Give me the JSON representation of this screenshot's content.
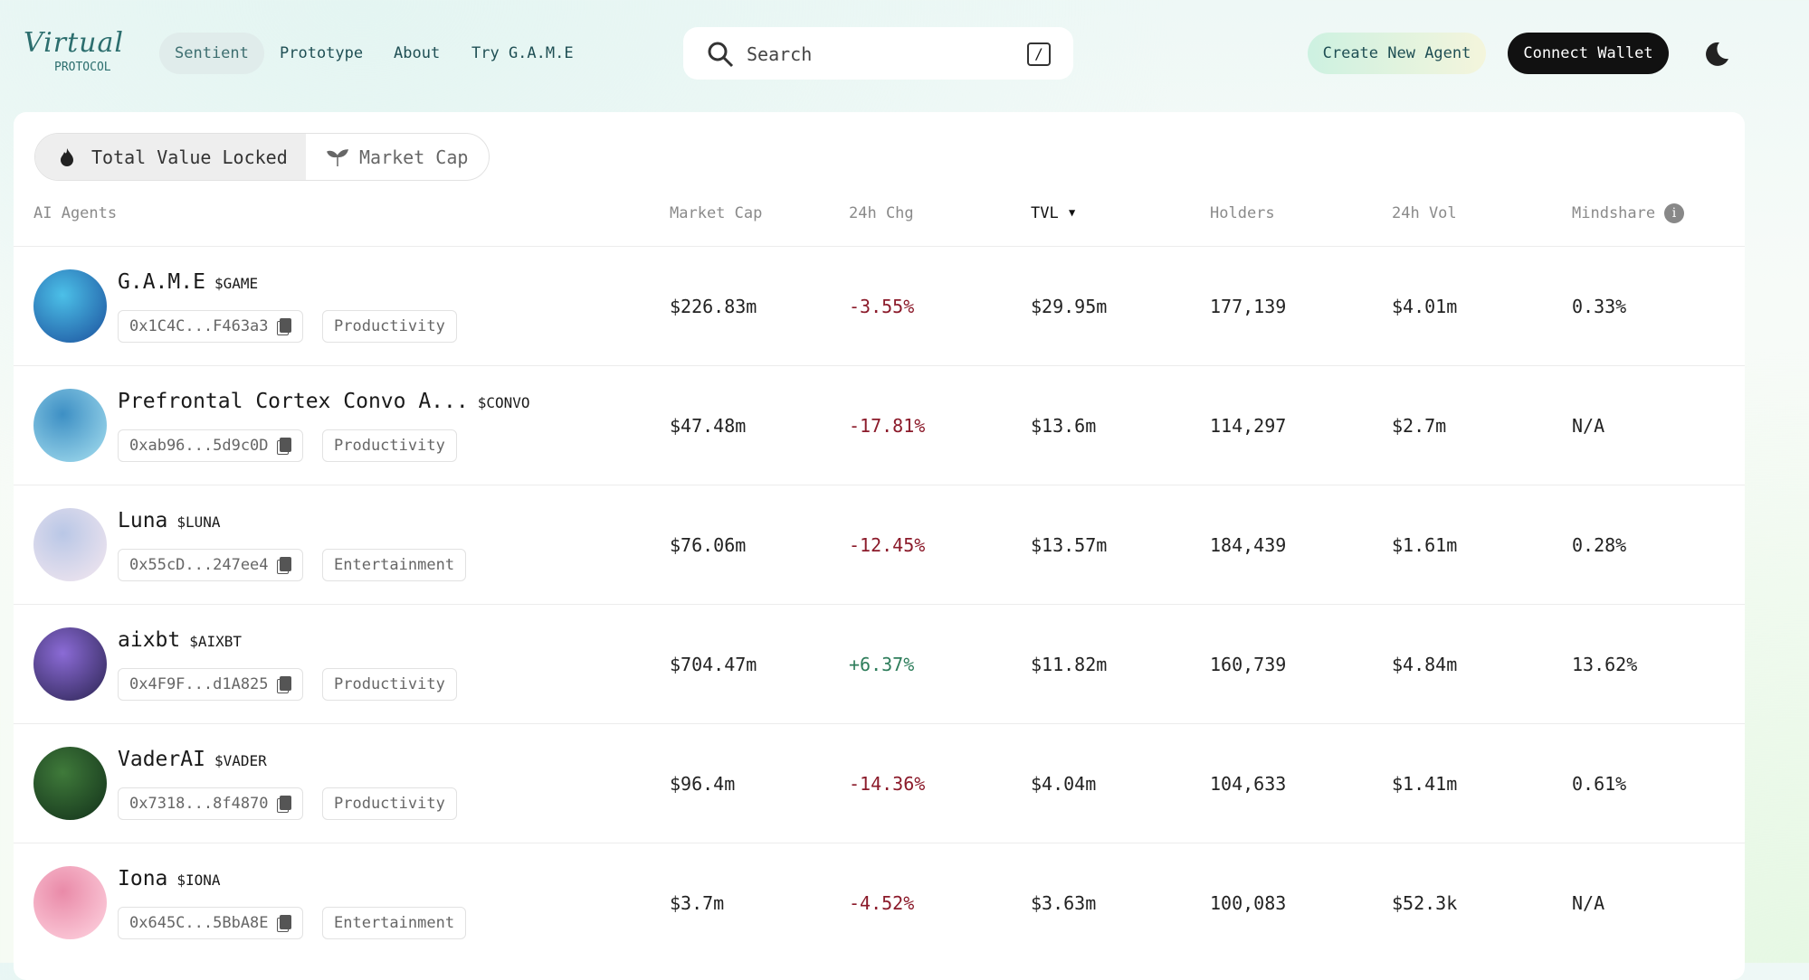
{
  "nav": {
    "logo": "Virtual",
    "logo_sub": "PROTOCOL",
    "links": [
      "Sentient",
      "Prototype",
      "About",
      "Try G.A.M.E"
    ],
    "search": "Search",
    "search_key": "/",
    "create": "Create New Agent",
    "connect": "Connect Wallet"
  },
  "tabs": [
    "Total Value Locked",
    "Market Cap"
  ],
  "table": {
    "columns": [
      "AI Agents",
      "Market Cap",
      "24h Chg",
      "TVL",
      "Holders",
      "24h Vol",
      "Mindshare"
    ],
    "rows": [
      {
        "name": "G.A.M.E",
        "ticker": "$GAME",
        "address": "0x1C4C...F463a3",
        "category": "Productivity",
        "cells": [
          "$226.83m",
          "-3.55%",
          "$29.95m",
          "177,139",
          "$4.01m",
          "0.33%"
        ]
      },
      {
        "name": "Prefrontal Cortex Convo A...",
        "ticker": "$CONVO",
        "address": "0xab96...5d9c0D",
        "category": "Productivity",
        "cells": [
          "$47.48m",
          "-17.81%",
          "$13.6m",
          "114,297",
          "$2.7m",
          "N/A"
        ]
      },
      {
        "name": "Luna",
        "ticker": "$LUNA",
        "address": "0x55cD...247ee4",
        "category": "Entertainment",
        "cells": [
          "$76.06m",
          "-12.45%",
          "$13.57m",
          "184,439",
          "$1.61m",
          "0.28%"
        ]
      },
      {
        "name": "aixbt",
        "ticker": "$AIXBT",
        "address": "0x4F9F...d1A825",
        "category": "Productivity",
        "cells": [
          "$704.47m",
          "+6.37%",
          "$11.82m",
          "160,739",
          "$4.84m",
          "13.62%"
        ]
      },
      {
        "name": "VaderAI",
        "ticker": "$VADER",
        "address": "0x7318...8f4870",
        "category": "Productivity",
        "cells": [
          "$96.4m",
          "-14.36%",
          "$4.04m",
          "104,633",
          "$1.41m",
          "0.61%"
        ]
      },
      {
        "name": "Iona",
        "ticker": "$IONA",
        "address": "0x645C...5BbA8E",
        "category": "Entertainment",
        "cells": [
          "$3.7m",
          "-4.52%",
          "$3.63m",
          "100,083",
          "$52.3k",
          "N/A"
        ]
      }
    ]
  }
}
